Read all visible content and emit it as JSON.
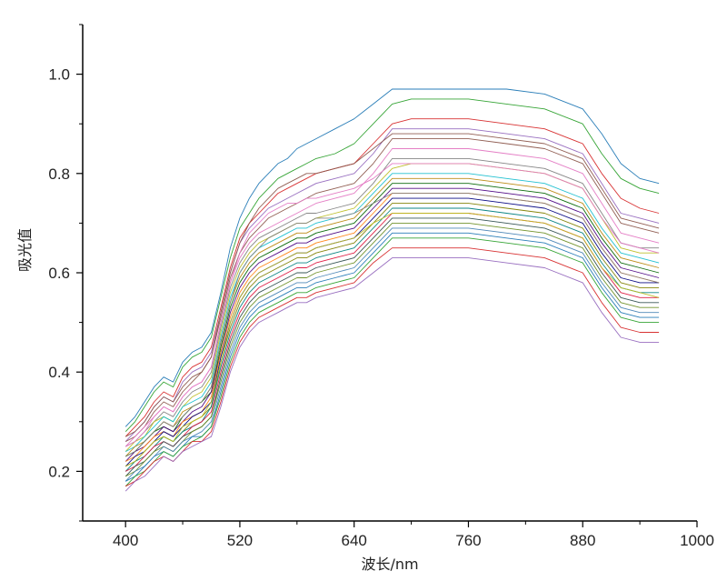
{
  "chart_data": {
    "type": "line",
    "title": "",
    "xlabel": "波长/nm",
    "ylabel": "吸光值",
    "xlim": [
      355,
      1000
    ],
    "ylim": [
      0.1,
      1.1
    ],
    "x_ticks": [
      400,
      520,
      640,
      760,
      880,
      1000
    ],
    "x_tick_labels": [
      "400",
      "520",
      "640",
      "760",
      "880",
      "1000"
    ],
    "y_ticks": [
      0.2,
      0.4,
      0.6,
      0.8,
      1.0
    ],
    "y_tick_labels": [
      "0.2",
      "0.4",
      "0.6",
      "0.8",
      "1.0"
    ],
    "grid": false,
    "legend": "none",
    "colors": [
      "#1f77b4",
      "#2ca02c",
      "#d62728",
      "#9467bd",
      "#8c564b",
      "#e377c2",
      "#7f7f7f",
      "#bcbd22",
      "#17becf",
      "#b8860b",
      "#006400",
      "#4b0082",
      "#ff7f0e",
      "#000080",
      "#808000",
      "#008080",
      "#dc143c",
      "#2f4f4f",
      "#6b8e23",
      "#4682b4"
    ],
    "x": [
      400,
      410,
      420,
      430,
      440,
      450,
      460,
      470,
      480,
      490,
      500,
      510,
      520,
      530,
      540,
      550,
      560,
      570,
      580,
      590,
      600,
      620,
      640,
      660,
      680,
      700,
      720,
      760,
      800,
      840,
      880,
      900,
      920,
      940,
      960
    ],
    "series": [
      {
        "values": [
          0.29,
          0.31,
          0.34,
          0.37,
          0.39,
          0.38,
          0.42,
          0.44,
          0.45,
          0.48,
          0.56,
          0.65,
          0.71,
          0.75,
          0.78,
          0.8,
          0.82,
          0.83,
          0.85,
          0.86,
          0.87,
          0.89,
          0.91,
          0.94,
          0.97,
          0.97,
          0.97,
          0.97,
          0.97,
          0.96,
          0.93,
          0.88,
          0.82,
          0.79,
          0.78
        ]
      },
      {
        "values": [
          0.28,
          0.3,
          0.33,
          0.36,
          0.38,
          0.37,
          0.41,
          0.43,
          0.44,
          0.47,
          0.55,
          0.63,
          0.69,
          0.72,
          0.75,
          0.77,
          0.79,
          0.8,
          0.81,
          0.82,
          0.83,
          0.84,
          0.86,
          0.9,
          0.94,
          0.95,
          0.95,
          0.95,
          0.94,
          0.93,
          0.9,
          0.84,
          0.79,
          0.77,
          0.76
        ]
      },
      {
        "values": [
          0.27,
          0.29,
          0.31,
          0.34,
          0.36,
          0.35,
          0.39,
          0.41,
          0.42,
          0.45,
          0.53,
          0.61,
          0.67,
          0.7,
          0.72,
          0.74,
          0.76,
          0.77,
          0.78,
          0.79,
          0.8,
          0.81,
          0.82,
          0.86,
          0.9,
          0.91,
          0.91,
          0.91,
          0.9,
          0.89,
          0.86,
          0.8,
          0.75,
          0.73,
          0.72
        ]
      },
      {
        "values": [
          0.26,
          0.28,
          0.3,
          0.33,
          0.35,
          0.34,
          0.38,
          0.4,
          0.41,
          0.44,
          0.52,
          0.6,
          0.66,
          0.69,
          0.71,
          0.73,
          0.74,
          0.75,
          0.76,
          0.77,
          0.78,
          0.79,
          0.8,
          0.84,
          0.89,
          0.89,
          0.89,
          0.89,
          0.88,
          0.87,
          0.84,
          0.78,
          0.72,
          0.71,
          0.7
        ]
      },
      {
        "values": [
          0.26,
          0.27,
          0.29,
          0.32,
          0.34,
          0.33,
          0.36,
          0.38,
          0.4,
          0.43,
          0.51,
          0.59,
          0.64,
          0.67,
          0.69,
          0.71,
          0.72,
          0.73,
          0.74,
          0.75,
          0.76,
          0.77,
          0.78,
          0.82,
          0.87,
          0.87,
          0.87,
          0.87,
          0.86,
          0.85,
          0.82,
          0.76,
          0.7,
          0.69,
          0.68
        ]
      },
      {
        "values": [
          0.25,
          0.27,
          0.29,
          0.31,
          0.33,
          0.32,
          0.35,
          0.37,
          0.38,
          0.41,
          0.5,
          0.58,
          0.63,
          0.66,
          0.68,
          0.69,
          0.7,
          0.71,
          0.72,
          0.73,
          0.74,
          0.75,
          0.76,
          0.8,
          0.85,
          0.85,
          0.85,
          0.85,
          0.84,
          0.83,
          0.8,
          0.74,
          0.68,
          0.67,
          0.66
        ]
      },
      {
        "values": [
          0.25,
          0.26,
          0.28,
          0.3,
          0.32,
          0.31,
          0.34,
          0.36,
          0.37,
          0.4,
          0.49,
          0.57,
          0.62,
          0.65,
          0.67,
          0.68,
          0.69,
          0.7,
          0.71,
          0.72,
          0.72,
          0.73,
          0.74,
          0.78,
          0.83,
          0.83,
          0.83,
          0.83,
          0.82,
          0.81,
          0.78,
          0.72,
          0.66,
          0.65,
          0.65
        ]
      },
      {
        "values": [
          0.24,
          0.26,
          0.27,
          0.3,
          0.31,
          0.3,
          0.33,
          0.35,
          0.36,
          0.39,
          0.48,
          0.56,
          0.61,
          0.64,
          0.66,
          0.67,
          0.68,
          0.69,
          0.7,
          0.7,
          0.71,
          0.72,
          0.73,
          0.77,
          0.81,
          0.82,
          0.82,
          0.82,
          0.81,
          0.8,
          0.77,
          0.71,
          0.65,
          0.64,
          0.64
        ]
      },
      {
        "values": [
          0.24,
          0.25,
          0.27,
          0.29,
          0.31,
          0.3,
          0.33,
          0.34,
          0.35,
          0.38,
          0.47,
          0.55,
          0.6,
          0.63,
          0.65,
          0.66,
          0.67,
          0.68,
          0.69,
          0.69,
          0.7,
          0.71,
          0.72,
          0.76,
          0.8,
          0.8,
          0.8,
          0.8,
          0.79,
          0.78,
          0.75,
          0.69,
          0.64,
          0.63,
          0.62
        ]
      },
      {
        "values": [
          0.23,
          0.25,
          0.26,
          0.28,
          0.3,
          0.29,
          0.32,
          0.33,
          0.34,
          0.37,
          0.46,
          0.54,
          0.59,
          0.62,
          0.64,
          0.65,
          0.66,
          0.67,
          0.68,
          0.68,
          0.69,
          0.7,
          0.71,
          0.75,
          0.79,
          0.79,
          0.79,
          0.79,
          0.78,
          0.77,
          0.74,
          0.68,
          0.63,
          0.62,
          0.61
        ]
      },
      {
        "values": [
          0.23,
          0.24,
          0.26,
          0.28,
          0.29,
          0.28,
          0.31,
          0.33,
          0.34,
          0.36,
          0.45,
          0.53,
          0.58,
          0.61,
          0.63,
          0.64,
          0.65,
          0.66,
          0.67,
          0.67,
          0.68,
          0.69,
          0.7,
          0.74,
          0.78,
          0.78,
          0.78,
          0.78,
          0.77,
          0.76,
          0.73,
          0.67,
          0.62,
          0.61,
          0.6
        ]
      },
      {
        "values": [
          0.22,
          0.24,
          0.25,
          0.27,
          0.29,
          0.28,
          0.3,
          0.32,
          0.33,
          0.36,
          0.44,
          0.52,
          0.57,
          0.6,
          0.62,
          0.63,
          0.64,
          0.65,
          0.66,
          0.66,
          0.67,
          0.68,
          0.69,
          0.73,
          0.77,
          0.77,
          0.77,
          0.77,
          0.76,
          0.75,
          0.72,
          0.66,
          0.61,
          0.6,
          0.59
        ]
      },
      {
        "values": [
          0.22,
          0.23,
          0.25,
          0.27,
          0.28,
          0.27,
          0.3,
          0.31,
          0.32,
          0.35,
          0.44,
          0.51,
          0.56,
          0.59,
          0.61,
          0.62,
          0.63,
          0.64,
          0.65,
          0.65,
          0.66,
          0.67,
          0.68,
          0.72,
          0.76,
          0.76,
          0.76,
          0.76,
          0.75,
          0.74,
          0.71,
          0.65,
          0.6,
          0.59,
          0.58
        ]
      },
      {
        "values": [
          0.21,
          0.23,
          0.24,
          0.26,
          0.28,
          0.27,
          0.29,
          0.31,
          0.32,
          0.34,
          0.43,
          0.5,
          0.55,
          0.58,
          0.6,
          0.61,
          0.62,
          0.63,
          0.64,
          0.64,
          0.65,
          0.66,
          0.67,
          0.71,
          0.75,
          0.75,
          0.75,
          0.75,
          0.74,
          0.73,
          0.7,
          0.64,
          0.59,
          0.58,
          0.58
        ]
      },
      {
        "values": [
          0.21,
          0.22,
          0.24,
          0.26,
          0.27,
          0.26,
          0.28,
          0.3,
          0.31,
          0.33,
          0.42,
          0.49,
          0.54,
          0.57,
          0.59,
          0.6,
          0.61,
          0.62,
          0.63,
          0.63,
          0.64,
          0.65,
          0.66,
          0.7,
          0.74,
          0.74,
          0.74,
          0.74,
          0.73,
          0.72,
          0.69,
          0.63,
          0.58,
          0.57,
          0.57
        ]
      },
      {
        "values": [
          0.2,
          0.22,
          0.23,
          0.25,
          0.27,
          0.26,
          0.28,
          0.29,
          0.3,
          0.33,
          0.41,
          0.48,
          0.53,
          0.56,
          0.58,
          0.59,
          0.6,
          0.61,
          0.62,
          0.62,
          0.63,
          0.64,
          0.65,
          0.69,
          0.73,
          0.73,
          0.73,
          0.73,
          0.72,
          0.71,
          0.68,
          0.62,
          0.57,
          0.56,
          0.56
        ]
      },
      {
        "values": [
          0.2,
          0.21,
          0.23,
          0.25,
          0.26,
          0.25,
          0.27,
          0.29,
          0.3,
          0.32,
          0.4,
          0.47,
          0.52,
          0.55,
          0.57,
          0.58,
          0.59,
          0.6,
          0.61,
          0.61,
          0.62,
          0.63,
          0.64,
          0.68,
          0.72,
          0.72,
          0.72,
          0.72,
          0.71,
          0.7,
          0.67,
          0.61,
          0.56,
          0.55,
          0.55
        ]
      },
      {
        "values": [
          0.19,
          0.21,
          0.22,
          0.24,
          0.26,
          0.25,
          0.27,
          0.28,
          0.29,
          0.31,
          0.39,
          0.46,
          0.51,
          0.54,
          0.56,
          0.57,
          0.58,
          0.59,
          0.6,
          0.6,
          0.61,
          0.62,
          0.63,
          0.67,
          0.71,
          0.71,
          0.71,
          0.71,
          0.7,
          0.69,
          0.66,
          0.6,
          0.55,
          0.54,
          0.54
        ]
      },
      {
        "values": [
          0.19,
          0.2,
          0.22,
          0.24,
          0.25,
          0.24,
          0.26,
          0.28,
          0.29,
          0.31,
          0.38,
          0.45,
          0.5,
          0.53,
          0.55,
          0.56,
          0.57,
          0.58,
          0.59,
          0.59,
          0.6,
          0.61,
          0.62,
          0.66,
          0.7,
          0.7,
          0.7,
          0.7,
          0.69,
          0.68,
          0.65,
          0.59,
          0.54,
          0.53,
          0.53
        ]
      },
      {
        "values": [
          0.18,
          0.2,
          0.21,
          0.23,
          0.25,
          0.24,
          0.26,
          0.27,
          0.28,
          0.3,
          0.37,
          0.44,
          0.49,
          0.52,
          0.54,
          0.55,
          0.56,
          0.57,
          0.58,
          0.58,
          0.59,
          0.6,
          0.61,
          0.65,
          0.69,
          0.69,
          0.69,
          0.69,
          0.68,
          0.67,
          0.64,
          0.58,
          0.53,
          0.52,
          0.52
        ]
      },
      {
        "values": [
          0.18,
          0.19,
          0.21,
          0.23,
          0.24,
          0.23,
          0.25,
          0.27,
          0.27,
          0.29,
          0.36,
          0.43,
          0.48,
          0.51,
          0.53,
          0.54,
          0.55,
          0.56,
          0.57,
          0.57,
          0.58,
          0.59,
          0.6,
          0.64,
          0.68,
          0.68,
          0.68,
          0.68,
          0.67,
          0.66,
          0.63,
          0.57,
          0.52,
          0.51,
          0.51
        ]
      },
      {
        "values": [
          0.17,
          0.19,
          0.2,
          0.22,
          0.24,
          0.23,
          0.25,
          0.26,
          0.27,
          0.29,
          0.35,
          0.42,
          0.47,
          0.5,
          0.52,
          0.53,
          0.54,
          0.55,
          0.56,
          0.56,
          0.57,
          0.58,
          0.59,
          0.63,
          0.67,
          0.67,
          0.67,
          0.67,
          0.66,
          0.65,
          0.62,
          0.56,
          0.51,
          0.5,
          0.5
        ]
      },
      {
        "values": [
          0.17,
          0.18,
          0.2,
          0.22,
          0.23,
          0.22,
          0.24,
          0.26,
          0.26,
          0.28,
          0.34,
          0.41,
          0.46,
          0.49,
          0.51,
          0.52,
          0.53,
          0.54,
          0.55,
          0.55,
          0.56,
          0.57,
          0.58,
          0.62,
          0.65,
          0.65,
          0.65,
          0.65,
          0.64,
          0.63,
          0.6,
          0.54,
          0.49,
          0.48,
          0.48
        ]
      },
      {
        "values": [
          0.16,
          0.18,
          0.19,
          0.21,
          0.23,
          0.22,
          0.24,
          0.25,
          0.26,
          0.27,
          0.33,
          0.4,
          0.45,
          0.48,
          0.5,
          0.51,
          0.52,
          0.53,
          0.54,
          0.54,
          0.55,
          0.56,
          0.57,
          0.6,
          0.63,
          0.63,
          0.63,
          0.63,
          0.62,
          0.61,
          0.58,
          0.52,
          0.47,
          0.46,
          0.46
        ]
      },
      {
        "values": [
          0.27,
          0.28,
          0.3,
          0.33,
          0.35,
          0.34,
          0.37,
          0.39,
          0.4,
          0.43,
          0.52,
          0.6,
          0.66,
          0.7,
          0.73,
          0.75,
          0.77,
          0.78,
          0.79,
          0.8,
          0.8,
          0.81,
          0.82,
          0.85,
          0.88,
          0.88,
          0.88,
          0.88,
          0.87,
          0.86,
          0.83,
          0.77,
          0.71,
          0.7,
          0.69
        ]
      },
      {
        "values": [
          0.25,
          0.26,
          0.28,
          0.31,
          0.33,
          0.32,
          0.35,
          0.37,
          0.38,
          0.41,
          0.5,
          0.58,
          0.64,
          0.68,
          0.7,
          0.72,
          0.73,
          0.74,
          0.74,
          0.75,
          0.75,
          0.76,
          0.77,
          0.79,
          0.82,
          0.82,
          0.82,
          0.82,
          0.81,
          0.8,
          0.77,
          0.71,
          0.66,
          0.65,
          0.64
        ]
      },
      {
        "values": [
          0.23,
          0.24,
          0.26,
          0.28,
          0.3,
          0.29,
          0.31,
          0.33,
          0.34,
          0.37,
          0.46,
          0.54,
          0.6,
          0.63,
          0.65,
          0.67,
          0.68,
          0.69,
          0.7,
          0.7,
          0.71,
          0.71,
          0.72,
          0.74,
          0.76,
          0.76,
          0.76,
          0.76,
          0.75,
          0.74,
          0.71,
          0.65,
          0.6,
          0.59,
          0.58
        ]
      },
      {
        "values": [
          0.21,
          0.22,
          0.24,
          0.26,
          0.27,
          0.26,
          0.29,
          0.3,
          0.31,
          0.34,
          0.42,
          0.5,
          0.55,
          0.58,
          0.6,
          0.61,
          0.62,
          0.63,
          0.64,
          0.64,
          0.65,
          0.66,
          0.67,
          0.7,
          0.72,
          0.72,
          0.72,
          0.72,
          0.71,
          0.7,
          0.67,
          0.61,
          0.57,
          0.56,
          0.55
        ]
      }
    ]
  }
}
